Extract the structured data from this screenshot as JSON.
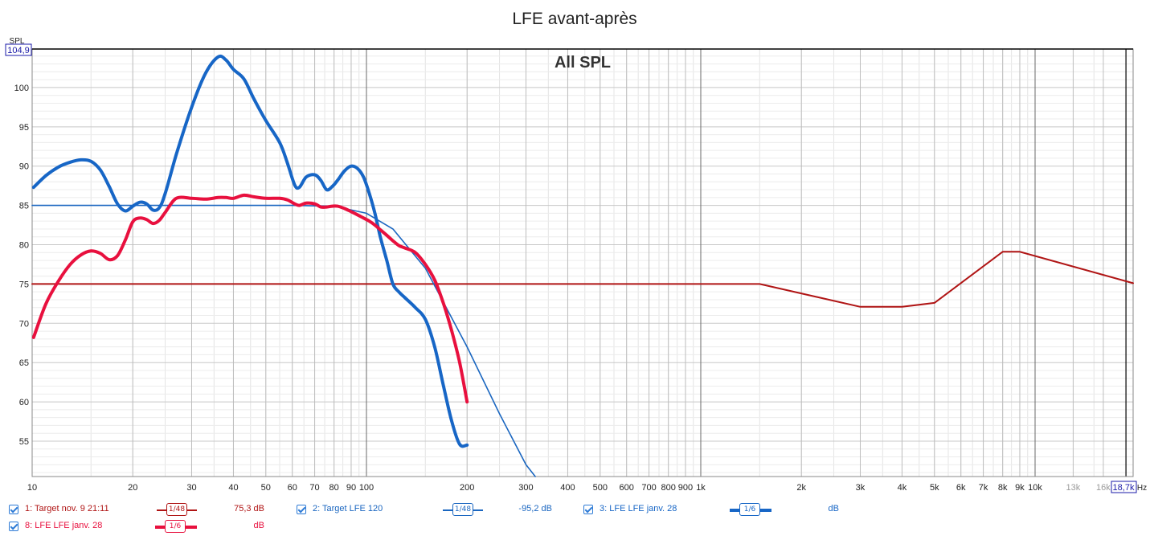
{
  "chart_data": {
    "type": "line",
    "title": "LFE avant-après",
    "subtitle": "All SPL",
    "ylabel": "SPL",
    "xunit": "Hz",
    "xscale": "log",
    "xlim": [
      10,
      20000
    ],
    "ylim": [
      50.5,
      104.9
    ],
    "ymax_box": "104,9",
    "xmax_box": "18,7k",
    "grid": true,
    "x_ticks": [
      {
        "v": 10,
        "label": "10",
        "major": true
      },
      {
        "v": 20,
        "label": "20"
      },
      {
        "v": 30,
        "label": "30"
      },
      {
        "v": 40,
        "label": "40"
      },
      {
        "v": 50,
        "label": "50"
      },
      {
        "v": 60,
        "label": "60"
      },
      {
        "v": 70,
        "label": "70"
      },
      {
        "v": 80,
        "label": "80"
      },
      {
        "v": 90,
        "label": "90"
      },
      {
        "v": 100,
        "label": "100",
        "major": true
      },
      {
        "v": 200,
        "label": "200"
      },
      {
        "v": 300,
        "label": "300"
      },
      {
        "v": 400,
        "label": "400"
      },
      {
        "v": 500,
        "label": "500"
      },
      {
        "v": 600,
        "label": "600"
      },
      {
        "v": 700,
        "label": "700"
      },
      {
        "v": 800,
        "label": "800"
      },
      {
        "v": 900,
        "label": "900"
      },
      {
        "v": 1000,
        "label": "1k",
        "major": true
      },
      {
        "v": 2000,
        "label": "2k"
      },
      {
        "v": 3000,
        "label": "3k"
      },
      {
        "v": 4000,
        "label": "4k"
      },
      {
        "v": 5000,
        "label": "5k"
      },
      {
        "v": 6000,
        "label": "6k"
      },
      {
        "v": 7000,
        "label": "7k"
      },
      {
        "v": 8000,
        "label": "8k"
      },
      {
        "v": 9000,
        "label": "9k"
      },
      {
        "v": 10000,
        "label": "10k",
        "major": true
      },
      {
        "v": 13000,
        "label": "13k",
        "faint": true
      },
      {
        "v": 16000,
        "label": "16k",
        "faint": true
      }
    ],
    "y_ticks": [
      55,
      60,
      65,
      70,
      75,
      80,
      85,
      90,
      95,
      100
    ],
    "series": [
      {
        "name": "1: Target nov. 9 21:11",
        "color": "#b01515",
        "width": 2,
        "x": [
          10,
          1500,
          3000,
          4000,
          5000,
          8000,
          9000,
          20000
        ],
        "y": [
          75,
          75,
          72.1,
          72.1,
          72.6,
          79.1,
          79.1,
          75.1
        ]
      },
      {
        "name": "2: Target LFE 120",
        "color": "#1a66c0",
        "width": 1.6,
        "x": [
          10,
          60,
          80,
          100,
          120,
          150,
          200,
          250,
          300,
          320
        ],
        "y": [
          85,
          85,
          84.9,
          84,
          82,
          77,
          67,
          58.5,
          52,
          50.5
        ]
      },
      {
        "name": "3: LFE LFE janv. 28",
        "color": "#1766c6",
        "width": 4,
        "x": [
          10.1,
          11,
          12,
          13,
          14,
          15,
          16,
          17,
          18,
          19,
          20,
          21,
          22,
          23,
          24,
          25,
          27,
          30,
          33,
          36,
          38,
          40,
          43,
          46,
          50,
          55,
          58,
          61,
          63,
          66,
          70,
          73,
          76,
          79,
          82,
          86,
          90,
          94,
          98,
          102,
          106,
          110,
          115,
          120,
          125,
          130,
          140,
          150,
          160,
          170,
          180,
          190,
          200
        ],
        "y": [
          87.3,
          88.8,
          89.9,
          90.5,
          90.8,
          90.6,
          89.5,
          87.4,
          85.2,
          84.3,
          84.9,
          85.4,
          85.2,
          84.4,
          84.7,
          86.5,
          91.5,
          97.5,
          101.8,
          103.9,
          103.5,
          102.3,
          101.1,
          98.6,
          95.8,
          93,
          90.4,
          87.6,
          87.3,
          88.6,
          88.9,
          88.2,
          87,
          87.4,
          88.2,
          89.4,
          90,
          89.7,
          88.6,
          86.5,
          84,
          81,
          78,
          75,
          74,
          73.3,
          72,
          70.5,
          67,
          62,
          57.5,
          54.6,
          54.5
        ]
      },
      {
        "name": "8: LFE LFE janv. 28",
        "color": "#e8103e",
        "width": 4,
        "x": [
          10.1,
          11,
          12,
          13,
          14,
          15,
          16,
          17,
          18,
          19,
          20,
          21,
          22,
          23,
          24,
          25,
          27,
          30,
          33,
          36,
          38,
          40,
          43,
          46,
          50,
          55,
          58,
          61,
          63,
          66,
          70,
          73,
          76,
          79,
          82,
          86,
          90,
          94,
          98,
          102,
          106,
          110,
          115,
          120,
          125,
          130,
          140,
          150,
          160,
          170,
          180,
          190,
          200
        ],
        "y": [
          68.2,
          72.5,
          75.4,
          77.5,
          78.7,
          79.2,
          78.9,
          78.1,
          78.6,
          80.6,
          82.9,
          83.4,
          83.2,
          82.7,
          83.1,
          84.1,
          85.9,
          85.9,
          85.8,
          86,
          86,
          85.9,
          86.3,
          86.1,
          85.9,
          85.9,
          85.7,
          85.2,
          85,
          85.3,
          85.2,
          84.8,
          84.8,
          84.9,
          84.9,
          84.6,
          84.2,
          83.8,
          83.4,
          83,
          82.5,
          81.9,
          81.2,
          80.5,
          79.9,
          79.6,
          79,
          77.5,
          75.5,
          72.5,
          69,
          65,
          60
        ]
      }
    ]
  },
  "legend": [
    {
      "name": "1: Target nov. 9 21:11",
      "smoothing": "1/48",
      "value": "75,3 dB",
      "color": "#b01515"
    },
    {
      "name": "2: Target LFE 120",
      "smoothing": "1/48",
      "value": "-95,2 dB",
      "color": "#1a66c0"
    },
    {
      "name": "3: LFE LFE janv. 28",
      "smoothing": "1/6",
      "value": "dB",
      "color": "#1766c6"
    },
    {
      "name": "8: LFE LFE janv. 28",
      "smoothing": "1/6",
      "value": "dB",
      "color": "#e8103e"
    }
  ]
}
